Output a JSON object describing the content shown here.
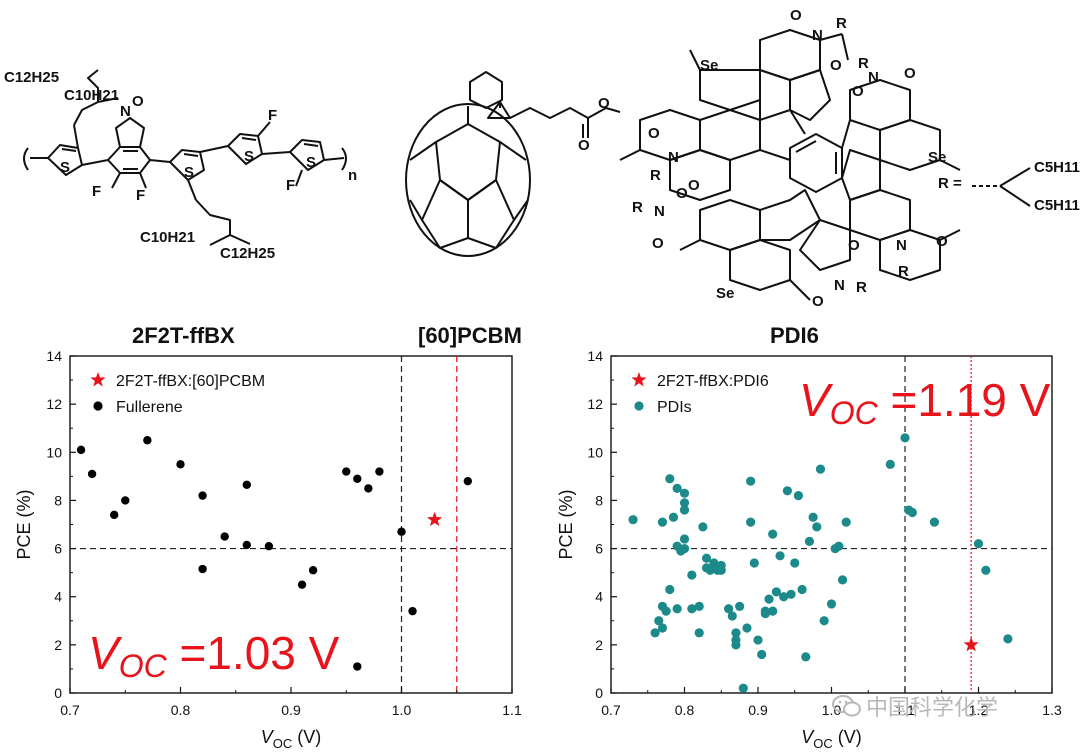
{
  "headers": {
    "polymer": "2F2T-ffBX",
    "fullerene": "[60]PCBM",
    "pdi": "PDI6"
  },
  "structures": {
    "polymer_labels": {
      "side_top_a": "C12H25",
      "side_top_b": "C10H21",
      "side_bot_a": "C10H21",
      "side_bot_b": "C12H25",
      "n": "N",
      "o": "O",
      "f": "F",
      "s": "S",
      "repeat": "n"
    },
    "pdi_labels": {
      "se": "Se",
      "o": "O",
      "n": "N",
      "r": "R"
    },
    "r_group": {
      "prefix": "R =",
      "a": "C5H11",
      "b": "C5H11"
    }
  },
  "watermark": "中国科学化学",
  "chart_data": [
    {
      "type": "scatter",
      "title": "",
      "xlabel": "V_OC (V)",
      "ylabel": "PCE (%)",
      "xlim": [
        0.7,
        1.1
      ],
      "ylim": [
        0,
        14
      ],
      "xticks": [
        "0.7",
        "0.8",
        "0.9",
        "1.0",
        "1.1"
      ],
      "yticks": [
        "0",
        "2",
        "4",
        "6",
        "8",
        "10",
        "12",
        "14"
      ],
      "legend_position": "top-left",
      "reference_lines": {
        "h": 6,
        "v_black": 1.0,
        "v_red": 1.05
      },
      "annotation": {
        "v": "V",
        "sub": "OC",
        "value": "=1.03 V"
      },
      "series": [
        {
          "name": "2F2T-ffBX:[60]PCBM",
          "marker": "star",
          "color": "#e8141c",
          "points": [
            [
              1.03,
              7.2
            ]
          ]
        },
        {
          "name": "Fullerene",
          "marker": "circle",
          "color": "#000000",
          "points": [
            [
              0.71,
              10.1
            ],
            [
              0.72,
              9.1
            ],
            [
              0.74,
              7.4
            ],
            [
              0.75,
              8.0
            ],
            [
              0.77,
              10.5
            ],
            [
              0.8,
              9.5
            ],
            [
              0.82,
              8.2
            ],
            [
              0.82,
              5.15
            ],
            [
              0.84,
              6.5
            ],
            [
              0.86,
              8.65
            ],
            [
              0.86,
              6.15
            ],
            [
              0.88,
              6.1
            ],
            [
              0.91,
              4.5
            ],
            [
              0.92,
              5.1
            ],
            [
              0.95,
              9.2
            ],
            [
              0.96,
              8.9
            ],
            [
              0.96,
              1.1
            ],
            [
              0.97,
              8.5
            ],
            [
              0.98,
              9.2
            ],
            [
              1.0,
              6.7
            ],
            [
              1.01,
              3.4
            ],
            [
              1.06,
              8.8
            ]
          ]
        }
      ]
    },
    {
      "type": "scatter",
      "title": "",
      "xlabel": "V_OC (V)",
      "ylabel": "PCE (%)",
      "xlim": [
        0.7,
        1.3
      ],
      "ylim": [
        0,
        14
      ],
      "xticks": [
        "0.7",
        "0.8",
        "0.9",
        "1.0",
        "1.1",
        "1.2",
        "1.3"
      ],
      "yticks": [
        "0",
        "2",
        "4",
        "6",
        "8",
        "10",
        "12",
        "14"
      ],
      "legend_position": "top-left",
      "reference_lines": {
        "h": 6,
        "v_black": 1.1,
        "v_red": 1.19
      },
      "annotation": {
        "v": "V",
        "sub": "OC",
        "value": "=1.19 V"
      },
      "series": [
        {
          "name": "2F2T-ffBX:PDI6",
          "marker": "star",
          "color": "#e8141c",
          "points": [
            [
              1.19,
              2.0
            ]
          ]
        },
        {
          "name": "PDIs",
          "marker": "circle",
          "color": "#1c8a8a",
          "points": [
            [
              0.73,
              7.2
            ],
            [
              0.76,
              2.5
            ],
            [
              0.765,
              3.0
            ],
            [
              0.77,
              2.7
            ],
            [
              0.77,
              7.1
            ],
            [
              0.77,
              3.6
            ],
            [
              0.775,
              3.4
            ],
            [
              0.78,
              8.9
            ],
            [
              0.78,
              4.3
            ],
            [
              0.785,
              7.3
            ],
            [
              0.79,
              8.5
            ],
            [
              0.79,
              6.1
            ],
            [
              0.79,
              3.5
            ],
            [
              0.795,
              5.9
            ],
            [
              0.8,
              8.3
            ],
            [
              0.8,
              7.9
            ],
            [
              0.8,
              7.6
            ],
            [
              0.8,
              6.4
            ],
            [
              0.8,
              6.0
            ],
            [
              0.81,
              4.9
            ],
            [
              0.81,
              3.5
            ],
            [
              0.82,
              3.6
            ],
            [
              0.82,
              2.5
            ],
            [
              0.825,
              6.9
            ],
            [
              0.83,
              5.6
            ],
            [
              0.83,
              5.2
            ],
            [
              0.835,
              5.1
            ],
            [
              0.84,
              5.4
            ],
            [
              0.845,
              5.1
            ],
            [
              0.85,
              5.3
            ],
            [
              0.85,
              5.1
            ],
            [
              0.86,
              3.5
            ],
            [
              0.865,
              3.2
            ],
            [
              0.87,
              2.5
            ],
            [
              0.87,
              2.2
            ],
            [
              0.87,
              2.0
            ],
            [
              0.875,
              3.6
            ],
            [
              0.88,
              0.2
            ],
            [
              0.885,
              2.7
            ],
            [
              0.89,
              8.8
            ],
            [
              0.89,
              7.1
            ],
            [
              0.895,
              5.4
            ],
            [
              0.9,
              2.2
            ],
            [
              0.905,
              1.6
            ],
            [
              0.91,
              3.4
            ],
            [
              0.91,
              3.3
            ],
            [
              0.915,
              3.9
            ],
            [
              0.92,
              6.6
            ],
            [
              0.92,
              3.4
            ],
            [
              0.925,
              4.2
            ],
            [
              0.93,
              5.7
            ],
            [
              0.935,
              4.0
            ],
            [
              0.94,
              8.4
            ],
            [
              0.945,
              4.1
            ],
            [
              0.95,
              5.4
            ],
            [
              0.955,
              8.2
            ],
            [
              0.96,
              4.3
            ],
            [
              0.965,
              1.5
            ],
            [
              0.97,
              6.3
            ],
            [
              0.975,
              7.3
            ],
            [
              0.98,
              6.9
            ],
            [
              0.985,
              9.3
            ],
            [
              0.99,
              3.0
            ],
            [
              1.0,
              3.7
            ],
            [
              1.005,
              6.0
            ],
            [
              1.01,
              6.1
            ],
            [
              1.015,
              4.7
            ],
            [
              1.02,
              7.1
            ],
            [
              1.08,
              9.5
            ],
            [
              1.1,
              10.6
            ],
            [
              1.105,
              7.6
            ],
            [
              1.11,
              7.5
            ],
            [
              1.14,
              7.1
            ],
            [
              1.2,
              6.2
            ],
            [
              1.21,
              5.1
            ],
            [
              1.24,
              2.25
            ]
          ]
        }
      ]
    }
  ]
}
